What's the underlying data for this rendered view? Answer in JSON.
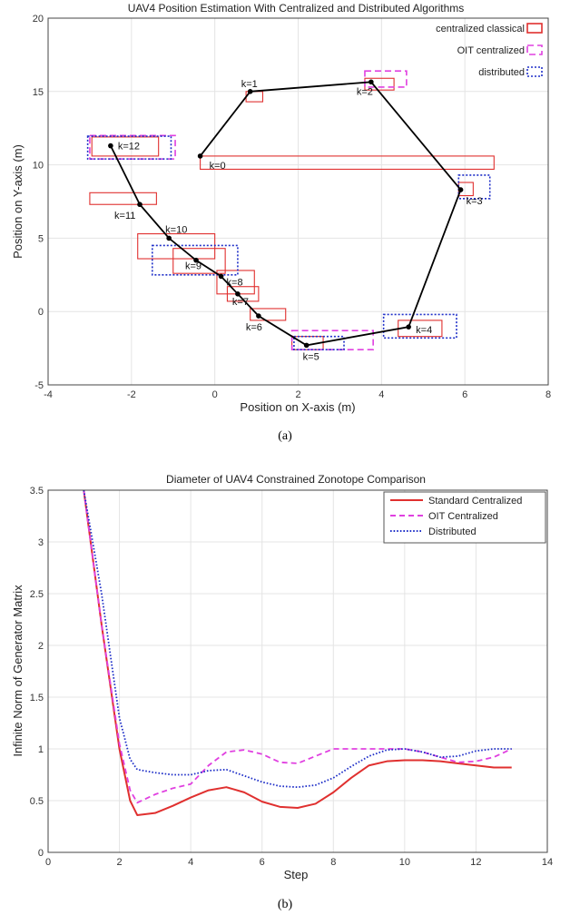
{
  "chart_data": [
    {
      "type": "scatter",
      "title": "UAV4 Position Estimation With Centralized and Distributed Algorithms",
      "xlabel": "Position on X-axis (m)",
      "ylabel": "Position on Y-axis (m)",
      "xlim": [
        -4,
        8
      ],
      "ylim": [
        -5,
        20
      ],
      "xticks": [
        -4,
        -2,
        0,
        2,
        4,
        6,
        8
      ],
      "yticks": [
        -5,
        0,
        5,
        10,
        15,
        20
      ],
      "grid": true,
      "legend_position": "top-right",
      "caption": "(a)",
      "legend": [
        {
          "label": "centralized classical",
          "color": "#e0302f",
          "style": "solid"
        },
        {
          "label": "OIT centralized",
          "color": "#e040e0",
          "style": "dashed"
        },
        {
          "label": "distributed",
          "color": "#1f2fc8",
          "style": "dotted"
        }
      ],
      "trajectory": {
        "color": "#000000",
        "points": [
          {
            "k": "k=0",
            "x": -0.35,
            "y": 10.6
          },
          {
            "k": "k=1",
            "x": 0.85,
            "y": 15.0
          },
          {
            "k": "k=2",
            "x": 3.75,
            "y": 15.65
          },
          {
            "k": "k=3",
            "x": 5.9,
            "y": 8.3
          },
          {
            "k": "k=4",
            "x": 4.65,
            "y": -1.05
          },
          {
            "k": "k=5",
            "x": 2.2,
            "y": -2.3
          },
          {
            "k": "k=6",
            "x": 1.05,
            "y": -0.3
          },
          {
            "k": "k=7",
            "x": 0.55,
            "y": 1.2
          },
          {
            "k": "k=8",
            "x": 0.15,
            "y": 2.4
          },
          {
            "k": "k=9",
            "x": -0.45,
            "y": 3.5
          },
          {
            "k": "k=10",
            "x": -1.1,
            "y": 5.0
          },
          {
            "k": "k=11",
            "x": -1.8,
            "y": 7.3
          },
          {
            "k": "k=12",
            "x": -2.5,
            "y": 11.3
          }
        ]
      },
      "boxes": [
        {
          "series": "centralized classical",
          "x": [
            -0.35,
            6.7
          ],
          "y": [
            9.7,
            10.6
          ]
        },
        {
          "series": "centralized classical",
          "x": [
            0.75,
            1.15
          ],
          "y": [
            14.3,
            15.0
          ]
        },
        {
          "series": "centralized classical",
          "x": [
            3.6,
            4.3
          ],
          "y": [
            15.1,
            15.9
          ]
        },
        {
          "series": "centralized classical",
          "x": [
            5.85,
            6.2
          ],
          "y": [
            7.9,
            8.8
          ]
        },
        {
          "series": "centralized classical",
          "x": [
            4.4,
            5.45
          ],
          "y": [
            -1.7,
            -0.6
          ]
        },
        {
          "series": "centralized classical",
          "x": [
            1.85,
            2.6
          ],
          "y": [
            -2.6,
            -1.7
          ]
        },
        {
          "series": "centralized classical",
          "x": [
            0.85,
            1.7
          ],
          "y": [
            -0.6,
            0.2
          ]
        },
        {
          "series": "centralized classical",
          "x": [
            0.3,
            1.05
          ],
          "y": [
            0.7,
            1.7
          ]
        },
        {
          "series": "centralized classical",
          "x": [
            0.05,
            0.95
          ],
          "y": [
            1.2,
            2.8
          ]
        },
        {
          "series": "centralized classical",
          "x": [
            -1.0,
            0.25
          ],
          "y": [
            2.6,
            4.3
          ]
        },
        {
          "series": "centralized classical",
          "x": [
            -1.85,
            0.0
          ],
          "y": [
            3.6,
            5.3
          ]
        },
        {
          "series": "centralized classical",
          "x": [
            -3.0,
            -1.4
          ],
          "y": [
            7.3,
            8.1
          ]
        },
        {
          "series": "centralized classical",
          "x": [
            -2.95,
            -1.35
          ],
          "y": [
            10.6,
            11.9
          ]
        },
        {
          "series": "OIT centralized",
          "x": [
            3.6,
            4.6
          ],
          "y": [
            15.3,
            16.4
          ]
        },
        {
          "series": "OIT centralized",
          "x": [
            1.85,
            3.8
          ],
          "y": [
            -2.6,
            -1.3
          ]
        },
        {
          "series": "OIT centralized",
          "x": [
            -3.0,
            -0.95
          ],
          "y": [
            10.4,
            12.0
          ]
        },
        {
          "series": "distributed",
          "x": [
            5.85,
            6.6
          ],
          "y": [
            7.7,
            9.3
          ]
        },
        {
          "series": "distributed",
          "x": [
            4.05,
            5.8
          ],
          "y": [
            -1.8,
            -0.2
          ]
        },
        {
          "series": "distributed",
          "x": [
            1.9,
            3.1
          ],
          "y": [
            -2.6,
            -1.7
          ]
        },
        {
          "series": "distributed",
          "x": [
            -1.5,
            0.55
          ],
          "y": [
            2.5,
            4.5
          ]
        },
        {
          "series": "distributed",
          "x": [
            -3.05,
            -1.05
          ],
          "y": [
            10.4,
            11.95
          ]
        }
      ]
    },
    {
      "type": "line",
      "title": "Diameter of UAV4 Constrained Zonotope Comparison",
      "xlabel": "Step",
      "ylabel": "Infinite Norm of Generator Matrix",
      "xlim": [
        0,
        14
      ],
      "ylim": [
        0,
        3.5
      ],
      "xticks": [
        0,
        2,
        4,
        6,
        8,
        10,
        12,
        14
      ],
      "yticks": [
        0,
        0.5,
        1,
        1.5,
        2,
        2.5,
        3,
        3.5
      ],
      "grid": true,
      "legend_position": "top-right",
      "caption": "(b)",
      "series": [
        {
          "name": "Standard Centralized",
          "color": "#e0302f",
          "style": "solid",
          "x": [
            1,
            1.5,
            2,
            2.3,
            2.5,
            3,
            3.5,
            4,
            4.5,
            5,
            5.5,
            6,
            6.5,
            7,
            7.5,
            8,
            8.5,
            9,
            9.5,
            10,
            10.5,
            11,
            11.5,
            12,
            12.5,
            13
          ],
          "y": [
            3.6,
            2.2,
            1.0,
            0.5,
            0.36,
            0.38,
            0.45,
            0.53,
            0.6,
            0.63,
            0.58,
            0.49,
            0.44,
            0.43,
            0.47,
            0.58,
            0.72,
            0.84,
            0.88,
            0.89,
            0.89,
            0.88,
            0.86,
            0.84,
            0.82,
            0.82
          ]
        },
        {
          "name": "OIT Centralized",
          "color": "#e040e0",
          "style": "dashed",
          "x": [
            1,
            1.5,
            2,
            2.3,
            2.5,
            3,
            3.5,
            4,
            4.5,
            5,
            5.5,
            6,
            6.5,
            7,
            7.5,
            8,
            8.5,
            9,
            9.5,
            10,
            10.5,
            11,
            11.5,
            12,
            12.5,
            13
          ],
          "y": [
            3.6,
            2.2,
            1.05,
            0.6,
            0.48,
            0.56,
            0.62,
            0.66,
            0.84,
            0.97,
            0.99,
            0.95,
            0.87,
            0.86,
            0.93,
            1.0,
            1.0,
            1.0,
            1.0,
            1.0,
            0.97,
            0.92,
            0.87,
            0.88,
            0.92,
            1.0
          ]
        },
        {
          "name": "Distributed",
          "color": "#1f2fc8",
          "style": "dotted",
          "x": [
            1,
            1.5,
            2,
            2.3,
            2.5,
            3,
            3.5,
            4,
            4.5,
            5,
            5.5,
            6,
            6.5,
            7,
            7.5,
            8,
            8.5,
            9,
            9.5,
            10,
            10.5,
            11,
            11.5,
            12,
            12.5,
            13
          ],
          "y": [
            3.6,
            2.5,
            1.3,
            0.9,
            0.8,
            0.77,
            0.75,
            0.75,
            0.79,
            0.8,
            0.74,
            0.68,
            0.64,
            0.63,
            0.65,
            0.72,
            0.83,
            0.93,
            0.99,
            1.0,
            0.97,
            0.92,
            0.93,
            0.98,
            1.0,
            1.0
          ]
        }
      ]
    }
  ]
}
